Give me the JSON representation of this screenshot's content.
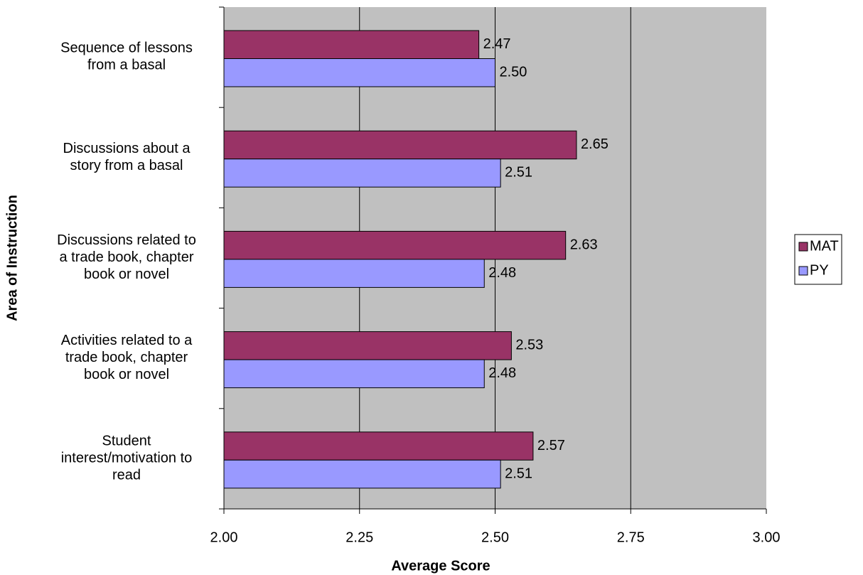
{
  "chart_data": {
    "type": "hbar",
    "xlabel": "Average Score",
    "ylabel": "Area of Instruction",
    "categories": [
      "Sequence of lessons\nfrom a basal",
      "Discussions about a\nstory from a basal",
      "Discussions related to\na trade book, chapter\nbook or novel",
      "Activities related to a\ntrade book, chapter\nbook or novel",
      "Student\ninterest/motivation to\nread"
    ],
    "series": [
      {
        "name": "MAT",
        "color": "#993366",
        "values": [
          2.47,
          2.65,
          2.63,
          2.53,
          2.57
        ],
        "value_labels": [
          "2.47",
          "2.65",
          "2.63",
          "2.53",
          "2.57"
        ]
      },
      {
        "name": "PY",
        "color": "#9999ff",
        "values": [
          2.5,
          2.51,
          2.48,
          2.48,
          2.51
        ],
        "value_labels": [
          "2.50",
          "2.51",
          "2.48",
          "2.48",
          "2.51"
        ]
      }
    ],
    "xlim": [
      2,
      3
    ],
    "xticks": [
      {
        "value": 2,
        "label": "2.00"
      },
      {
        "value": 2.25,
        "label": "2.25"
      },
      {
        "value": 2.5,
        "label": "2.50"
      },
      {
        "value": 2.75,
        "label": "2.75"
      },
      {
        "value": 3,
        "label": "3.00"
      }
    ],
    "grid": true,
    "plot_background": "#c0c0c0",
    "legend": "right"
  }
}
